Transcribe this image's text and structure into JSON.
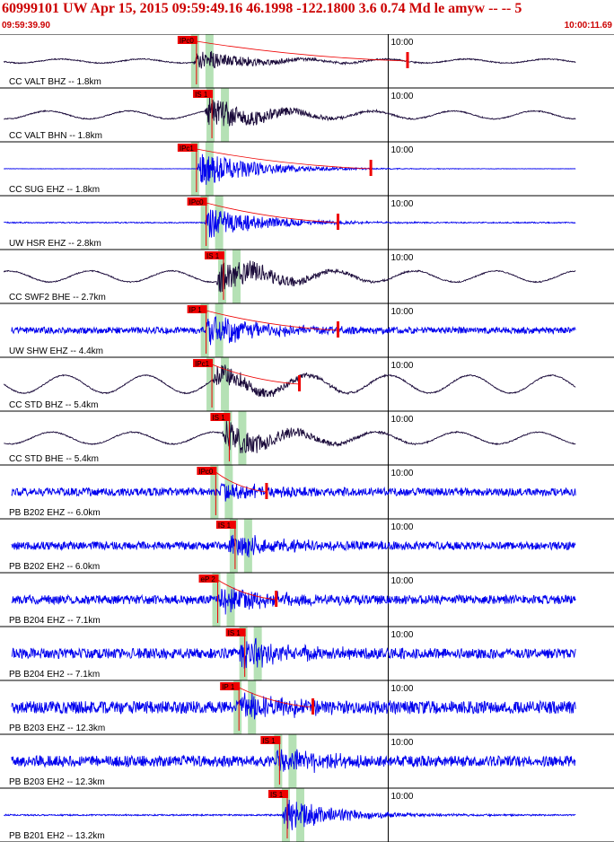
{
  "header": {
    "title": "60999101 UW Apr 15, 2015 09:59:49.16   46.1998 -122.1800  3.6 0.74 Md le amyw -- --   5",
    "time_start": "09:59:39.90",
    "time_end": "10:00:11.69"
  },
  "colors": {
    "header_text": "#cc0000",
    "trace_dark": "#1a0a3a",
    "trace_blue": "#0000ee",
    "pick_box": "#ee0000",
    "pick_line": "#ee0000",
    "window_shade": "#a8dca8",
    "separator": "#000000"
  },
  "chart_data": {
    "type": "seismogram",
    "time_range": [
      "09:59:39.90",
      "10:00:11.69"
    ],
    "minute_marker": "10:00",
    "traces": [
      {
        "label": "CC VALT BHZ -- 1.8km",
        "color": "dark",
        "pick": "IPc0",
        "pick_t": 9.8,
        "s_t": null,
        "onset_t": 10.0,
        "amp": 0.55,
        "noise": 0.03,
        "swell": 0.1,
        "coda_end": "|",
        "coda_t": 21.1
      },
      {
        "label": "CC VALT BHN -- 1.8km",
        "color": "dark",
        "pick": "IS 1",
        "pick_t": 10.6,
        "s_t": null,
        "onset_t": 10.6,
        "amp": 0.8,
        "noise": 0.03,
        "swell": 0.2,
        "coda_end": "",
        "coda_t": null
      },
      {
        "label": "CC SUG EHZ -- 1.8km",
        "color": "blue",
        "pick": "IPc1",
        "pick_t": 9.8,
        "s_t": null,
        "onset_t": 10.2,
        "amp": 0.85,
        "noise": 0.01,
        "swell": 0.0,
        "coda_end": "|",
        "coda_t": 19.2
      },
      {
        "label": "UW HSR EHZ -- 2.8km",
        "color": "blue",
        "pick": "IPc0",
        "pick_t": 10.3,
        "s_t": null,
        "onset_t": 10.6,
        "amp": 0.75,
        "noise": 0.03,
        "swell": 0.0,
        "coda_end": "|",
        "coda_t": 17.5
      },
      {
        "label": "CC SWF2 BHE -- 2.7km",
        "color": "dark",
        "pick": "IS 1",
        "pick_t": 11.2,
        "s_t": null,
        "onset_t": 11.2,
        "amp": 0.85,
        "noise": 0.03,
        "swell": 0.28,
        "coda_end": "",
        "coda_t": null
      },
      {
        "label": "UW SHW EHZ -- 4.4km",
        "color": "blue",
        "pick": "IP 1",
        "pick_t": 10.3,
        "s_t": null,
        "onset_t": 10.6,
        "amp": 0.7,
        "noise": 0.18,
        "swell": 0.0,
        "coda_end": "|",
        "coda_t": 17.5
      },
      {
        "label": "CC STD BHZ -- 5.4km",
        "color": "dark",
        "pick": "IPc1",
        "pick_t": 10.6,
        "s_t": null,
        "onset_t": 11.0,
        "amp": 0.55,
        "noise": 0.03,
        "swell": 0.45,
        "coda_end": "|",
        "coda_t": 15.5
      },
      {
        "label": "CC STD BHE -- 5.4km",
        "color": "dark",
        "pick": "IS 1",
        "pick_t": 11.5,
        "s_t": null,
        "onset_t": 11.5,
        "amp": 0.75,
        "noise": 0.03,
        "swell": 0.3,
        "coda_end": "",
        "coda_t": null
      },
      {
        "label": "PB B202 EHZ -- 6.0km",
        "color": "blue",
        "pick": "IPc0",
        "pick_t": 10.8,
        "s_t": null,
        "onset_t": 11.2,
        "amp": 0.4,
        "noise": 0.22,
        "swell": 0.0,
        "coda_end": "+",
        "coda_t": 13.8
      },
      {
        "label": "PB B202 EH2 -- 6.0km",
        "color": "blue",
        "pick": "IS 1",
        "pick_t": 11.8,
        "s_t": null,
        "onset_t": 11.8,
        "amp": 0.55,
        "noise": 0.22,
        "swell": 0.0,
        "coda_end": "",
        "coda_t": null
      },
      {
        "label": "PB B204 EHZ -- 7.1km",
        "color": "blue",
        "pick": "eP 2",
        "pick_t": 10.9,
        "s_t": null,
        "onset_t": 11.3,
        "amp": 0.55,
        "noise": 0.25,
        "swell": 0.0,
        "coda_end": "+",
        "coda_t": 14.3
      },
      {
        "label": "PB B204 EH2 -- 7.1km",
        "color": "blue",
        "pick": "IS 1",
        "pick_t": 12.3,
        "s_t": null,
        "onset_t": 12.3,
        "amp": 0.7,
        "noise": 0.28,
        "swell": 0.0,
        "coda_end": "",
        "coda_t": null
      },
      {
        "label": "PB B203 EHZ -- 12.3km",
        "color": "blue",
        "pick": "IP 1",
        "pick_t": 12.0,
        "s_t": null,
        "onset_t": 12.4,
        "amp": 0.55,
        "noise": 0.35,
        "swell": 0.0,
        "coda_end": "+",
        "coda_t": 16.2
      },
      {
        "label": "PB B203 EH2 -- 12.3km",
        "color": "blue",
        "pick": "IS 1",
        "pick_t": 14.1,
        "s_t": null,
        "onset_t": 14.1,
        "amp": 0.6,
        "noise": 0.3,
        "swell": 0.0,
        "coda_end": "",
        "coda_t": null
      },
      {
        "label": "PB B201 EH2 -- 13.2km",
        "color": "blue",
        "pick": "IS 1",
        "pick_t": 14.5,
        "s_t": null,
        "onset_t": 14.6,
        "amp": 0.8,
        "noise": 0.04,
        "swell": 0.0,
        "coda_end": "",
        "coda_t": null
      }
    ]
  }
}
